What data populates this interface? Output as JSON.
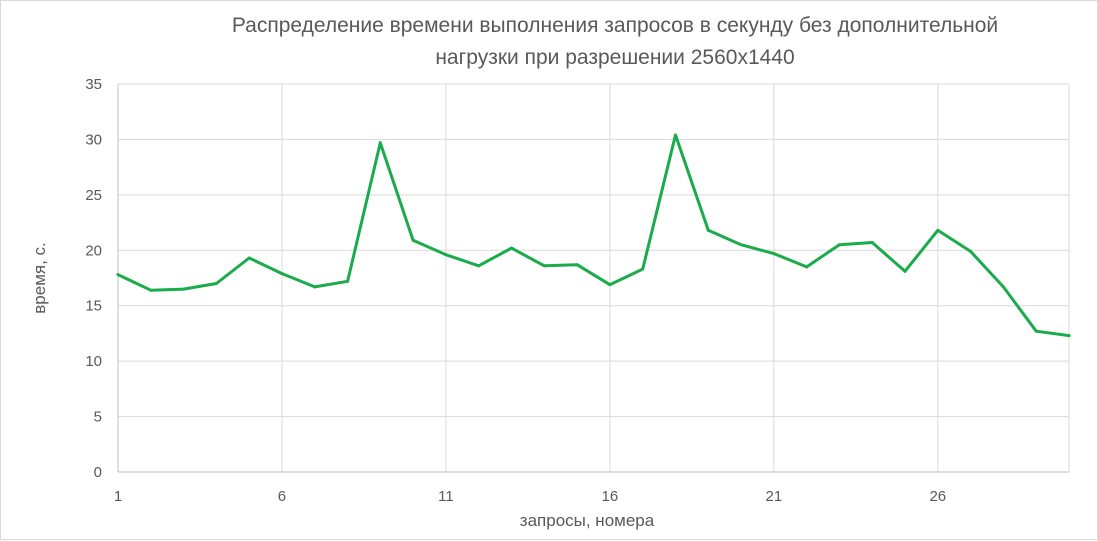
{
  "chart_data": {
    "type": "line",
    "title": "Распределение времени выполнения запросов в секунду без дополнительной нагрузки при разрешении 2560x1440",
    "title_lines": [
      "Распределение времени выполнения запросов в секунду без дополнительной",
      "нагрузки при разрешении 2560x1440"
    ],
    "xlabel": "запросы, номера",
    "ylabel": "время, с.",
    "ylim": [
      0,
      35
    ],
    "y_ticks": [
      "0",
      "5",
      "10",
      "15",
      "20",
      "25",
      "30",
      "35"
    ],
    "x_tick_labels": [
      "1",
      "6",
      "11",
      "16",
      "21",
      "26"
    ],
    "x_tick_positions": [
      1,
      6,
      11,
      16,
      21,
      26
    ],
    "xlim": [
      1,
      30
    ],
    "grid": true,
    "legend": "none",
    "color": "#1aab4b",
    "series": [
      {
        "x": [
          1,
          2,
          3,
          4,
          5,
          6,
          7,
          8,
          9,
          10,
          11,
          12,
          13,
          14,
          15,
          16,
          17,
          18,
          19,
          20,
          21,
          22,
          23,
          24,
          25,
          26,
          27,
          28,
          29,
          30
        ],
        "values": [
          17.8,
          16.4,
          16.5,
          17.0,
          19.3,
          17.9,
          16.7,
          17.2,
          29.7,
          20.9,
          19.6,
          18.6,
          20.2,
          18.6,
          18.7,
          16.9,
          18.3,
          30.4,
          21.8,
          20.5,
          19.7,
          18.5,
          20.5,
          20.7,
          18.1,
          21.8,
          19.9,
          16.7,
          12.7,
          12.3
        ]
      }
    ]
  }
}
